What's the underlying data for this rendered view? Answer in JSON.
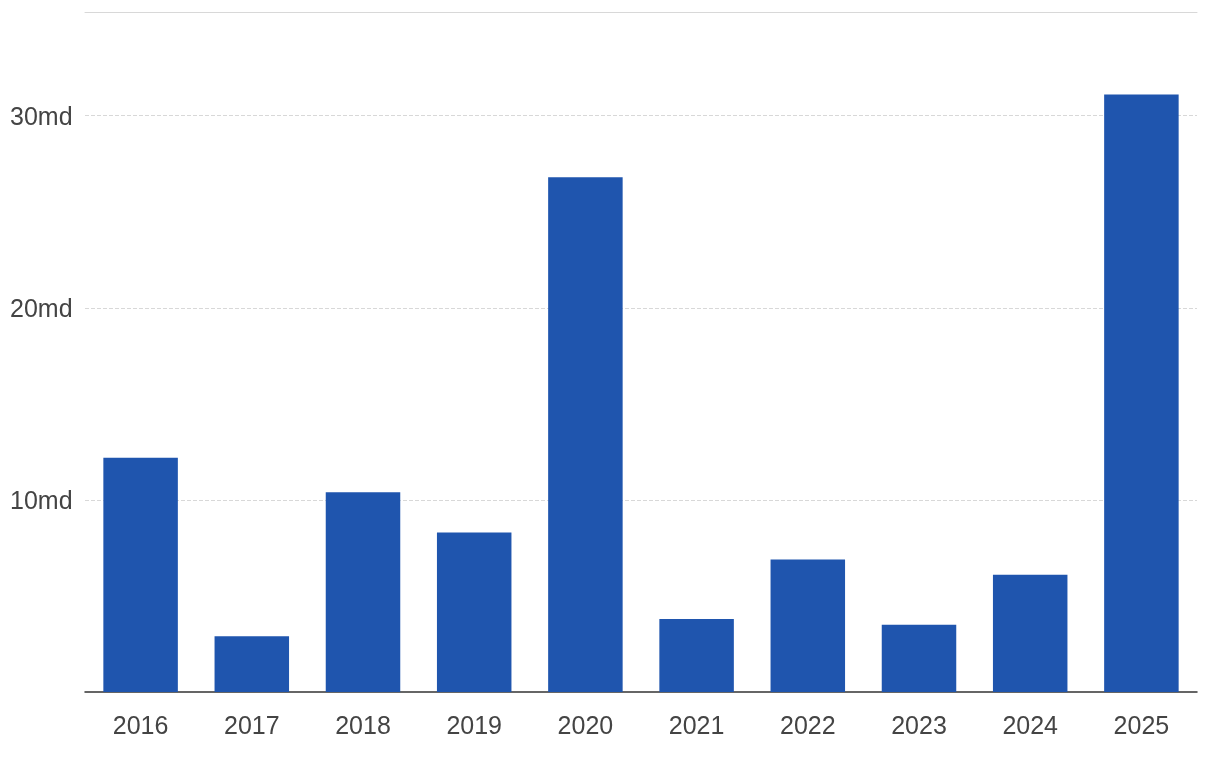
{
  "chart_data": {
    "type": "bar",
    "categories": [
      "2016",
      "2017",
      "2018",
      "2019",
      "2020",
      "2021",
      "2022",
      "2023",
      "2024",
      "2025"
    ],
    "values": [
      12.2,
      2.9,
      10.4,
      8.3,
      26.8,
      3.8,
      6.9,
      3.5,
      6.1,
      31.1
    ],
    "color": "#1f55ae",
    "ylim": [
      0,
      35.4
    ],
    "yticks": [
      {
        "value": 10,
        "label": "10md"
      },
      {
        "value": 20,
        "label": "20md"
      },
      {
        "value": 30,
        "label": "30md"
      }
    ],
    "grid": "y"
  }
}
